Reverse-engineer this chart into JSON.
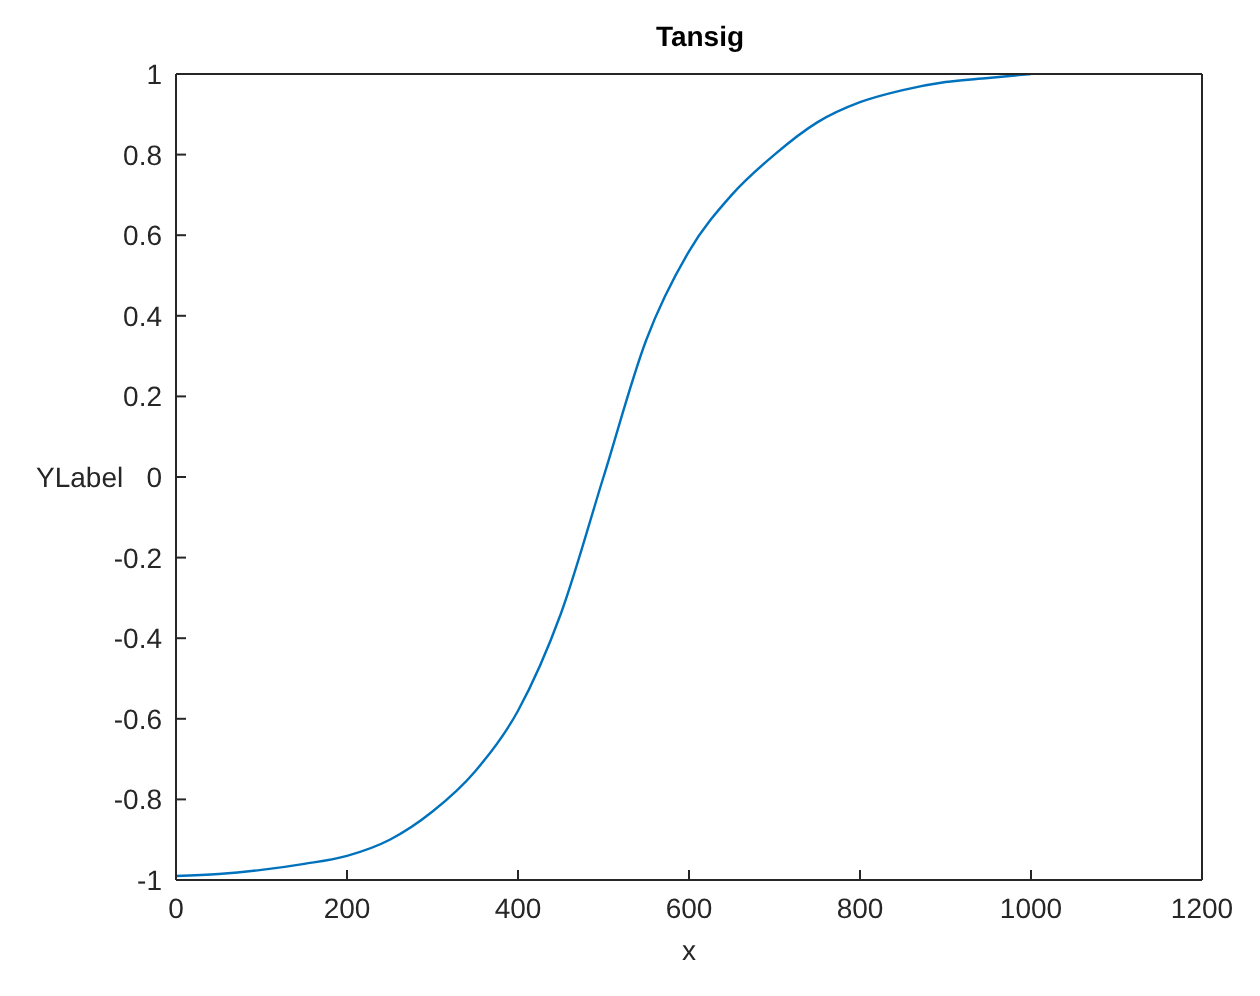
{
  "chart_data": {
    "type": "line",
    "title": "Tansig",
    "xlabel": "x",
    "ylabel": "YLabel",
    "x": [
      0,
      50,
      100,
      150,
      200,
      250,
      300,
      350,
      400,
      450,
      500,
      550,
      600,
      650,
      700,
      750,
      800,
      850,
      900,
      950,
      1000
    ],
    "series": [
      {
        "color": "#0072bd",
        "values": [
          -0.99,
          -0.985,
          -0.975,
          -0.96,
          -0.94,
          -0.9,
          -0.83,
          -0.73,
          -0.58,
          -0.34,
          0.0,
          0.34,
          0.56,
          0.7,
          0.8,
          0.88,
          0.93,
          0.96,
          0.98,
          0.99,
          1.0
        ]
      }
    ],
    "xlim": [
      0,
      1200
    ],
    "xticks": [
      0,
      200,
      400,
      600,
      800,
      1000,
      1200
    ],
    "ylim": [
      -1,
      1
    ],
    "yticks": [
      -1,
      -0.8,
      -0.6,
      -0.4,
      -0.2,
      0,
      0.2,
      0.4,
      0.6,
      0.8,
      1
    ],
    "grid": false,
    "legend": false
  }
}
